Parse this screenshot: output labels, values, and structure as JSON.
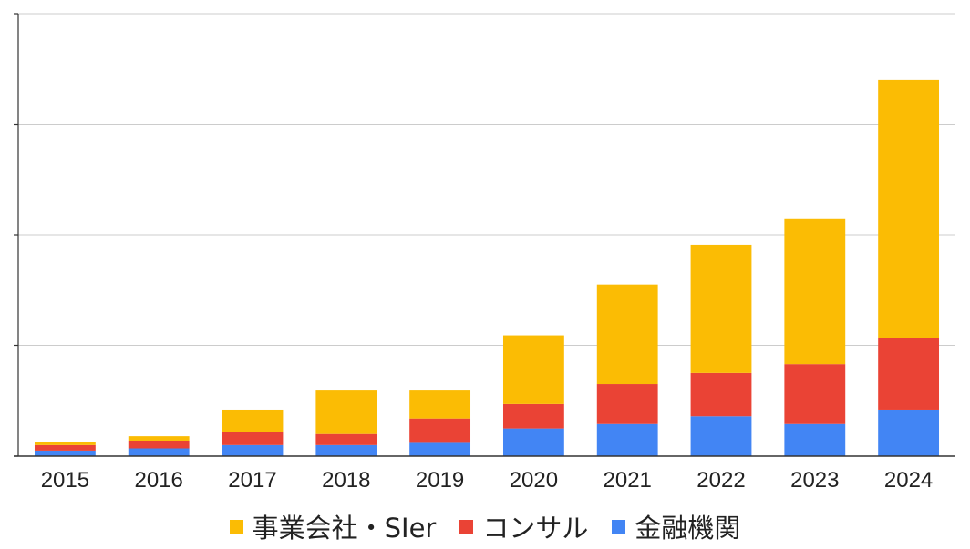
{
  "chart_data": {
    "type": "bar",
    "stacked": true,
    "categories": [
      "2015",
      "2016",
      "2017",
      "2018",
      "2019",
      "2020",
      "2021",
      "2022",
      "2023",
      "2024"
    ],
    "series": [
      {
        "name": "金融機関",
        "color": "#4285f4",
        "values": [
          5,
          7,
          10,
          10,
          12,
          25,
          29,
          36,
          29,
          42
        ]
      },
      {
        "name": "コンサル",
        "color": "#ea4335",
        "values": [
          5,
          7,
          12,
          10,
          22,
          22,
          36,
          39,
          54,
          65
        ]
      },
      {
        "name": "事業会社・SIer",
        "color": "#fbbc04",
        "values": [
          3,
          4,
          20,
          40,
          26,
          62,
          90,
          116,
          132,
          233
        ]
      }
    ],
    "legend_order": [
      2,
      1,
      0
    ],
    "ylim": [
      0,
      400
    ],
    "y_ticks": [
      0,
      100,
      200,
      300,
      400
    ],
    "y_tick_labels_shown": false,
    "grid": true,
    "legend_position": "bottom"
  }
}
